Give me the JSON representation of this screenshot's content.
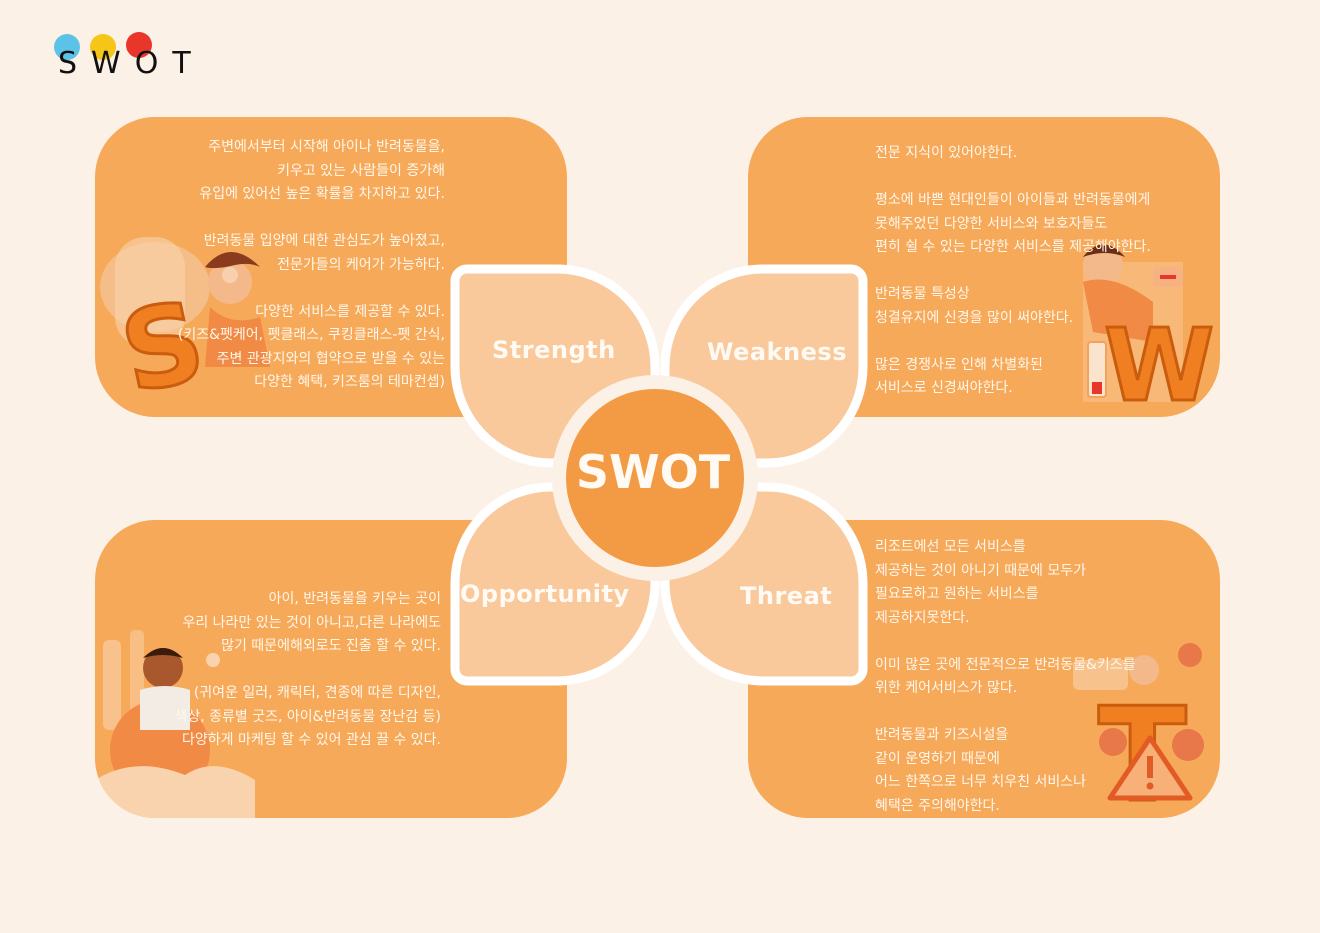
{
  "logo": {
    "text": "SWOT",
    "colors": [
      "#5bc3e8",
      "#f5c518",
      "#e8362b"
    ]
  },
  "center": {
    "title": "SWOT"
  },
  "petals": {
    "strength": "Strength",
    "weakness": "Weakness",
    "opportunity": "Opportunity",
    "threat": "Threat"
  },
  "cards": {
    "strength": "주변에서부터 시작해 아이나 반려동물을,\n키우고 있는 사람들이 증가해\n유입에 있어선 높은 확률을 차지하고 있다.\n\n반려동물 입양에 대한 관심도가 높아졌고,\n전문가들의 케어가 가능하다.\n\n다양한 서비스를 제공할 수 있다.\n(키즈&펫케어, 펫클래스, 쿠킹클래스-펫 간식,\n주변 관광지와의 협약으로 받을 수 있는\n다양한 혜택, 키즈룸의 테마컨셉)",
    "weakness": "전문 지식이 있어야한다.\n\n평소에 바쁜 현대인들이 아이들과 반려동물에게\n못해주었던 다양한 서비스와 보호자들도\n편히 쉴 수 있는 다양한 서비스를 제공해야한다.\n\n반려동물 특성상\n청결유지에 신경을 많이 써야한다.\n\n많은 경쟁사로 인해 차별화된\n서비스로 신경써야한다.",
    "opportunity": "아이, 반려동물을 키우는 곳이\n우리 나라만 있는 것이 아니고,다른 나라에도\n많기 때문에해외로도 진출 할 수 있다.\n\n(귀여운 일러, 캐릭터, 견종에 따른 디자인,\n색상, 종류별 굿즈, 아이&반려동물 장난감 등)\n다양하게 마케팅 할 수 있어 관심 끌 수 있다.",
    "threat": "리조트에선 모든 서비스를\n제공하는 것이 아니기 때문에 모두가\n필요로하고 원하는 서비스를\n제공하지못한다.\n\n이미 많은 곳에 전문적으로 반려동물&키즈를\n위한 케어서비스가 많다.\n\n반려동물과 키즈시설을\n같이 운영하기 때문에\n어느 한쪽으로 너무 치우친 서비스나\n혜택은 주의해야한다."
  },
  "letters": {
    "s": "S",
    "w": "W",
    "t": "T"
  },
  "theme": {
    "card": "#f7a95a",
    "petal": "#f9c99c",
    "petal_edge": "#ffffff",
    "center": "#f29a44",
    "background": "#fcf1e6"
  }
}
